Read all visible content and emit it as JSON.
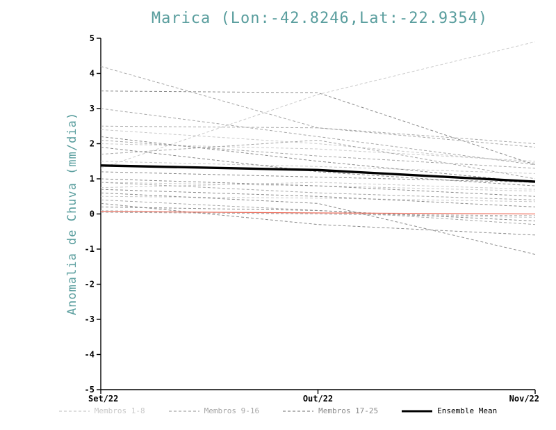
{
  "colors": {
    "title": "#5a9e9e",
    "axis": "#000000",
    "members_1_8": "#c9c9c9",
    "members_9_16": "#a6a6a6",
    "members_17_25": "#8a8a8a",
    "red_line": "#ee6f5e",
    "ensemble_mean": "#000000"
  },
  "chart_data": {
    "type": "line",
    "title": "Marica (Lon:-42.8246,Lat:-22.9354)",
    "xlabel": "",
    "ylabel": "Anomalia de Chuva (mm/dia)",
    "x_categories": [
      "Set/22",
      "Out/22",
      "Nov/22"
    ],
    "ylim": [
      -5,
      5
    ],
    "yticks": [
      5,
      4,
      3,
      2,
      1,
      0,
      -1,
      -2,
      -3,
      -4,
      -5
    ],
    "grid": false,
    "legend_position": "bottom",
    "groups": [
      {
        "name": "Membros 1-8",
        "color": "#c9c9c9",
        "style": "dashed",
        "series": [
          [
            1.3,
            3.4,
            4.9
          ],
          [
            2.0,
            1.85,
            1.5
          ],
          [
            1.5,
            1.35,
            1.15
          ],
          [
            0.9,
            0.8,
            0.65
          ],
          [
            0.5,
            0.45,
            0.35
          ],
          [
            0.1,
            0.0,
            -0.1
          ],
          [
            2.4,
            2.0,
            1.45
          ],
          [
            0.75,
            0.9,
            0.7
          ]
        ]
      },
      {
        "name": "Membros 9-16",
        "color": "#a6a6a6",
        "style": "dashed",
        "series": [
          [
            4.2,
            2.45,
            1.9
          ],
          [
            3.0,
            2.2,
            1.4
          ],
          [
            2.1,
            1.65,
            1.3
          ],
          [
            1.7,
            2.1,
            1.0
          ],
          [
            0.9,
            0.6,
            0.4
          ],
          [
            0.4,
            0.1,
            -0.3
          ],
          [
            2.5,
            2.45,
            2.0
          ],
          [
            0.05,
            0.0,
            -0.05
          ]
        ]
      },
      {
        "name": "Membros 17-25",
        "color": "#8a8a8a",
        "style": "dashed",
        "series": [
          [
            3.5,
            3.45,
            1.4
          ],
          [
            2.2,
            1.5,
            0.9
          ],
          [
            1.0,
            0.8,
            0.5
          ],
          [
            0.6,
            0.3,
            -1.15
          ],
          [
            0.3,
            -0.3,
            -0.6
          ],
          [
            1.9,
            1.2,
            0.8
          ],
          [
            0.7,
            0.5,
            0.2
          ],
          [
            1.2,
            1.05,
            0.9
          ],
          [
            0.2,
            0.1,
            -0.2
          ]
        ]
      }
    ],
    "red_line": {
      "color": "#ee6f5e",
      "values": [
        0.07,
        0.03,
        0.0
      ]
    },
    "ensemble_mean": {
      "label": "Ensemble Mean",
      "color": "#000000",
      "values": [
        1.38,
        1.25,
        0.92
      ]
    }
  },
  "legend": {
    "items": [
      {
        "label": "Membros 1-8",
        "color": "#c9c9c9",
        "style": "dashed"
      },
      {
        "label": "Membros 9-16",
        "color": "#a6a6a6",
        "style": "dashed"
      },
      {
        "label": "Membros 17-25",
        "color": "#8a8a8a",
        "style": "dashed"
      },
      {
        "label": "Ensemble Mean",
        "color": "#000000",
        "style": "solid"
      }
    ]
  }
}
